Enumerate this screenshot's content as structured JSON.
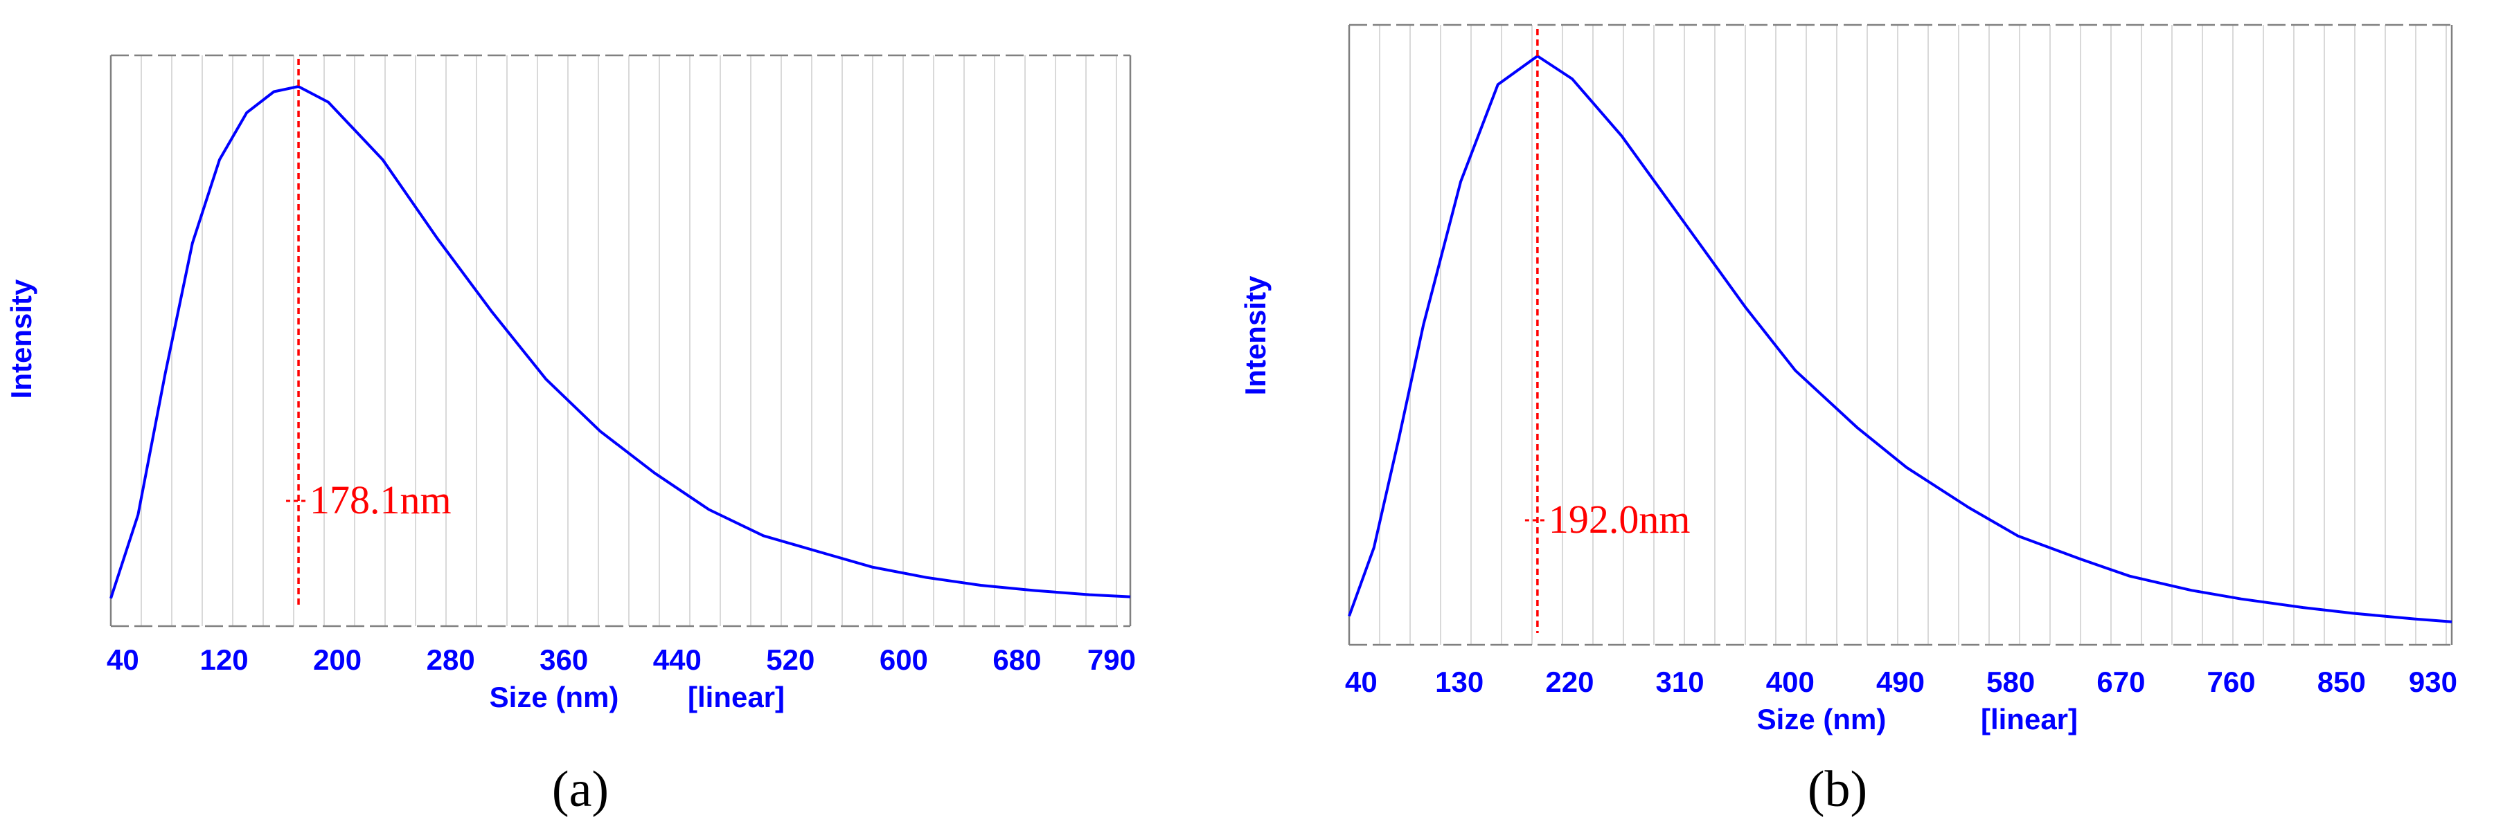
{
  "chart_data": [
    {
      "panel_label": "(a)",
      "type": "line",
      "ylabel": "Intensity",
      "xlabel": "Size (nm)",
      "xscale_label": "[linear]",
      "xlim": [
        40,
        790
      ],
      "xticks": [
        "40",
        "120",
        "200",
        "280",
        "360",
        "440",
        "520",
        "600",
        "680",
        "790"
      ],
      "peak_label": "178.1nm",
      "peak_x": 178.1,
      "grid": "vertical",
      "color": "#0000ff",
      "series": [
        {
          "x": [
            40,
            60,
            80,
            100,
            120,
            140,
            160,
            178,
            200,
            240,
            280,
            320,
            360,
            400,
            440,
            480,
            520,
            560,
            600,
            640,
            680,
            720,
            760,
            790
          ],
          "y": [
            0.02,
            0.18,
            0.45,
            0.7,
            0.86,
            0.95,
            0.99,
            1.0,
            0.97,
            0.86,
            0.71,
            0.57,
            0.44,
            0.34,
            0.26,
            0.19,
            0.14,
            0.11,
            0.08,
            0.06,
            0.045,
            0.035,
            0.027,
            0.023
          ]
        }
      ]
    },
    {
      "panel_label": "(b)",
      "type": "line",
      "ylabel": "Intensity",
      "xlabel": "Size (nm)",
      "xscale_label": "[linear]",
      "xlim": [
        40,
        930
      ],
      "xticks": [
        "40",
        "130",
        "220",
        "310",
        "400",
        "490",
        "580",
        "670",
        "760",
        "850",
        "930"
      ],
      "peak_label": "192.0nm",
      "peak_x": 192.0,
      "grid": "vertical",
      "color": "#0000ff",
      "series": [
        {
          "x": [
            40,
            60,
            80,
            100,
            130,
            160,
            192,
            220,
            260,
            310,
            360,
            400,
            450,
            490,
            540,
            580,
            630,
            670,
            720,
            760,
            810,
            850,
            900,
            930
          ],
          "y": [
            0.02,
            0.14,
            0.33,
            0.53,
            0.78,
            0.95,
            1.0,
            0.96,
            0.86,
            0.71,
            0.56,
            0.45,
            0.35,
            0.28,
            0.21,
            0.16,
            0.12,
            0.09,
            0.065,
            0.05,
            0.035,
            0.025,
            0.015,
            0.01
          ]
        }
      ]
    }
  ]
}
